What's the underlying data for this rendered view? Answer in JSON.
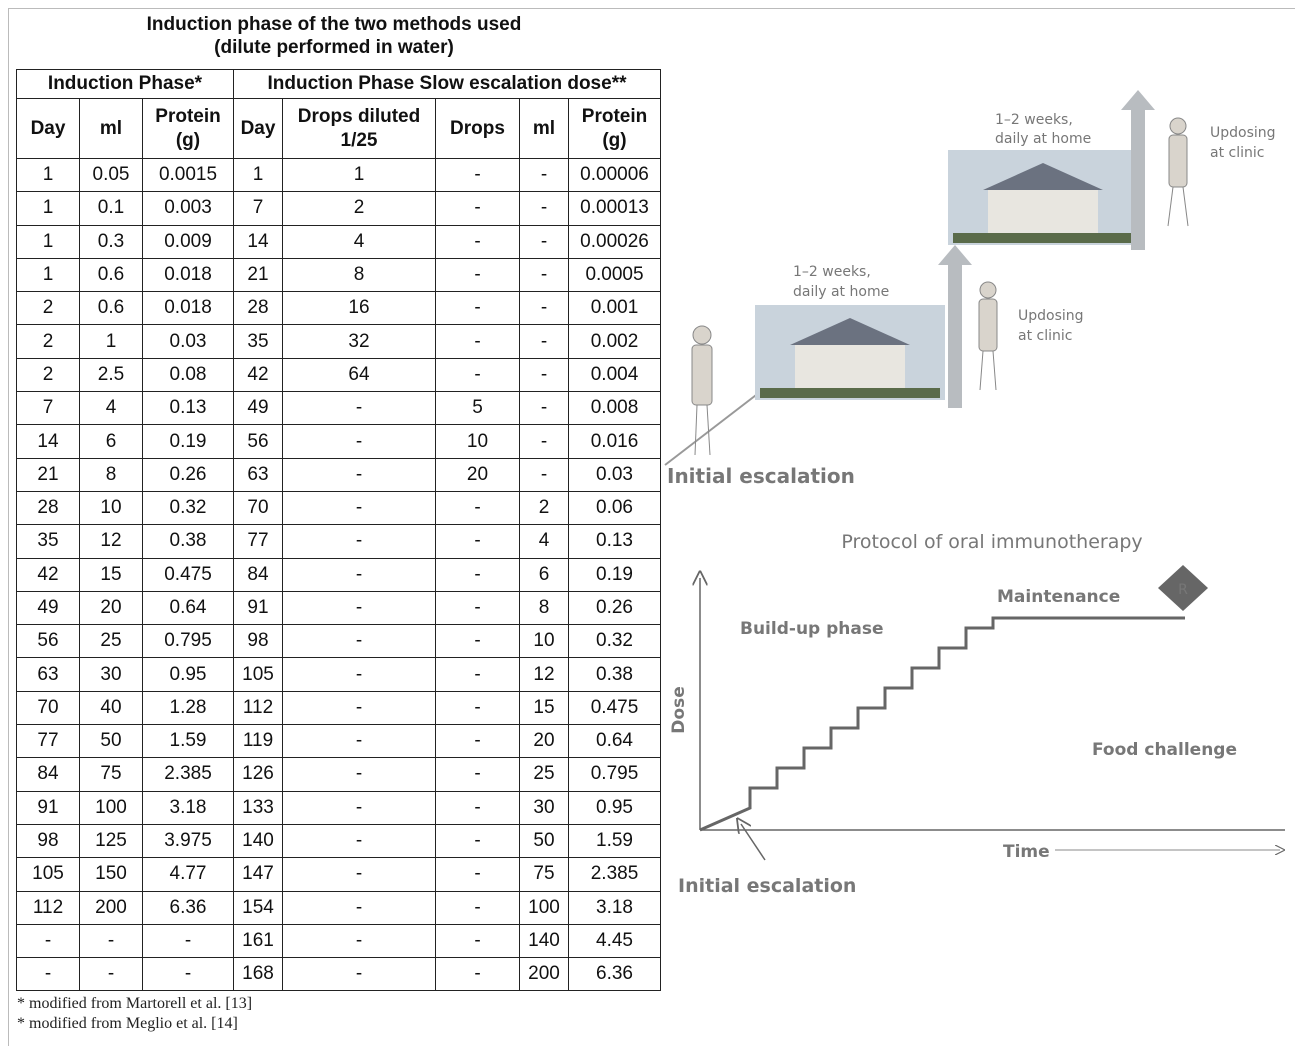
{
  "table": {
    "title": [
      "Induction phase of the two methods used",
      "(dilute performed in water)"
    ],
    "groups": [
      "Induction Phase*",
      "Induction Phase Slow escalation dose**"
    ],
    "columns": [
      "Day",
      "ml",
      "Protein (g)",
      "Day",
      "Drops diluted 1/25",
      "Drops",
      "ml",
      "Protein (g)"
    ],
    "rows": [
      [
        "1",
        "0.05",
        "0.0015",
        "1",
        "1",
        "-",
        "-",
        "0.00006"
      ],
      [
        "1",
        "0.1",
        "0.003",
        "7",
        "2",
        "-",
        "-",
        "0.00013"
      ],
      [
        "1",
        "0.3",
        "0.009",
        "14",
        "4",
        "-",
        "-",
        "0.00026"
      ],
      [
        "1",
        "0.6",
        "0.018",
        "21",
        "8",
        "-",
        "-",
        "0.0005"
      ],
      [
        "2",
        "0.6",
        "0.018",
        "28",
        "16",
        "-",
        "-",
        "0.001"
      ],
      [
        "2",
        "1",
        "0.03",
        "35",
        "32",
        "-",
        "-",
        "0.002"
      ],
      [
        "2",
        "2.5",
        "0.08",
        "42",
        "64",
        "-",
        "-",
        "0.004"
      ],
      [
        "7",
        "4",
        "0.13",
        "49",
        "-",
        "5",
        "-",
        "0.008"
      ],
      [
        "14",
        "6",
        "0.19",
        "56",
        "-",
        "10",
        "-",
        "0.016"
      ],
      [
        "21",
        "8",
        "0.26",
        "63",
        "-",
        "20",
        "-",
        "0.03"
      ],
      [
        "28",
        "10",
        "0.32",
        "70",
        "-",
        "-",
        "2",
        "0.06"
      ],
      [
        "35",
        "12",
        "0.38",
        "77",
        "-",
        "-",
        "4",
        "0.13"
      ],
      [
        "42",
        "15",
        "0.475",
        "84",
        "-",
        "-",
        "6",
        "0.19"
      ],
      [
        "49",
        "20",
        "0.64",
        "91",
        "-",
        "-",
        "8",
        "0.26"
      ],
      [
        "56",
        "25",
        "0.795",
        "98",
        "-",
        "-",
        "10",
        "0.32"
      ],
      [
        "63",
        "30",
        "0.95",
        "105",
        "-",
        "-",
        "12",
        "0.38"
      ],
      [
        "70",
        "40",
        "1.28",
        "112",
        "-",
        "-",
        "15",
        "0.475"
      ],
      [
        "77",
        "50",
        "1.59",
        "119",
        "-",
        "-",
        "20",
        "0.64"
      ],
      [
        "84",
        "75",
        "2.385",
        "126",
        "-",
        "-",
        "25",
        "0.795"
      ],
      [
        "91",
        "100",
        "3.18",
        "133",
        "-",
        "-",
        "30",
        "0.95"
      ],
      [
        "98",
        "125",
        "3.975",
        "140",
        "-",
        "-",
        "50",
        "1.59"
      ],
      [
        "105",
        "150",
        "4.77",
        "147",
        "-",
        "-",
        "75",
        "2.385"
      ],
      [
        "112",
        "200",
        "6.36",
        "154",
        "-",
        "-",
        "100",
        "3.18"
      ],
      [
        "-",
        "-",
        "-",
        "161",
        "-",
        "-",
        "140",
        "4.45"
      ],
      [
        "-",
        "-",
        "-",
        "168",
        "-",
        "-",
        "200",
        "6.36"
      ]
    ]
  },
  "footnotes": [
    "* modified from Martorell et al. [13]",
    "* modified from Meglio et al. [14]"
  ],
  "diagram": {
    "home_label_1": [
      "1–2 weeks,",
      "daily at home"
    ],
    "home_label_2": [
      "1–2 weeks,",
      "daily at home"
    ],
    "clinic_label_1": [
      "Updosing",
      "at clinic"
    ],
    "clinic_label_2": [
      "Updosing",
      "at clinic"
    ],
    "initial_escalation_top": "Initial escalation",
    "protocol_title": "Protocol of oral immunotherapy",
    "maintenance": "Maintenance",
    "r_marker": "R",
    "build_up": "Build-up phase",
    "dose_axis": "Dose",
    "food_challenge": "Food challenge",
    "time_axis": "Time",
    "initial_escalation_bottom": "Initial escalation"
  }
}
